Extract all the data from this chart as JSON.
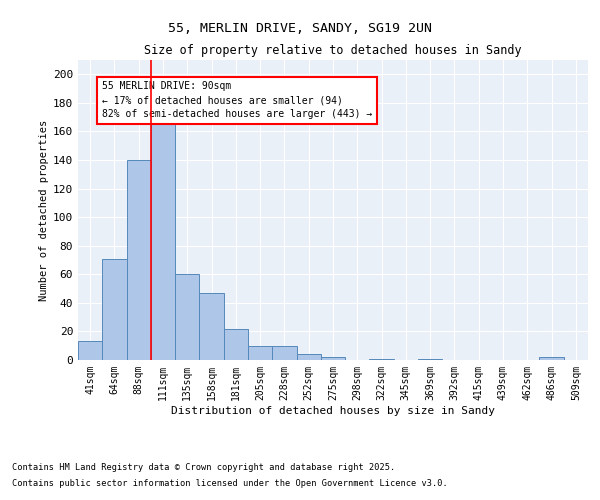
{
  "title1": "55, MERLIN DRIVE, SANDY, SG19 2UN",
  "title2": "Size of property relative to detached houses in Sandy",
  "xlabel": "Distribution of detached houses by size in Sandy",
  "ylabel": "Number of detached properties",
  "categories": [
    "41sqm",
    "64sqm",
    "88sqm",
    "111sqm",
    "135sqm",
    "158sqm",
    "181sqm",
    "205sqm",
    "228sqm",
    "252sqm",
    "275sqm",
    "298sqm",
    "322sqm",
    "345sqm",
    "369sqm",
    "392sqm",
    "415sqm",
    "439sqm",
    "462sqm",
    "486sqm",
    "509sqm"
  ],
  "values": [
    13,
    71,
    140,
    165,
    60,
    47,
    22,
    10,
    10,
    4,
    2,
    0,
    1,
    0,
    1,
    0,
    0,
    0,
    0,
    2,
    0
  ],
  "bar_color": "#aec6e8",
  "bar_edge_color": "#5588bb",
  "bg_color": "#eaf0f8",
  "red_line_index": 2.5,
  "annotation_text": "55 MERLIN DRIVE: 90sqm\n← 17% of detached houses are smaller (94)\n82% of semi-detached houses are larger (443) →",
  "annotation_box_color": "white",
  "annotation_box_edge": "red",
  "footer1": "Contains HM Land Registry data © Crown copyright and database right 2025.",
  "footer2": "Contains public sector information licensed under the Open Government Licence v3.0.",
  "ylim": [
    0,
    210
  ],
  "yticks": [
    0,
    20,
    40,
    60,
    80,
    100,
    120,
    140,
    160,
    180,
    200
  ]
}
